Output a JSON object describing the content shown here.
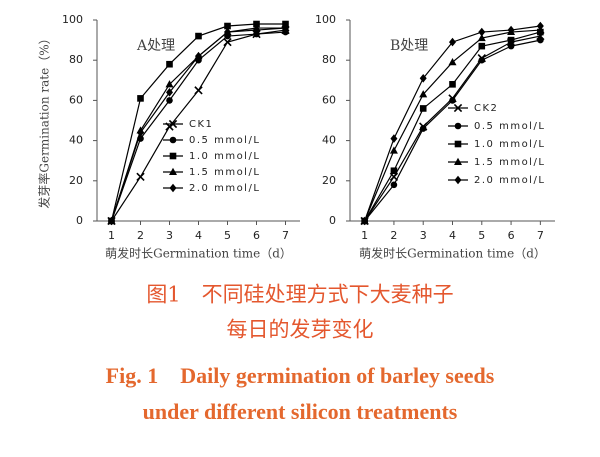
{
  "chart_data": [
    {
      "type": "line",
      "annotation": "A处理",
      "y_label": "发芽率Germination rate（%）",
      "x_label": "萌发时长Germination time（d）",
      "x": [
        1,
        2,
        3,
        4,
        5,
        6,
        7
      ],
      "xlim": [
        0.5,
        7.5
      ],
      "xticks": [
        1,
        2,
        3,
        4,
        5,
        6,
        7
      ],
      "ylim": [
        0,
        100
      ],
      "yticks": [
        0,
        20,
        40,
        60,
        80,
        100
      ],
      "legend": "center",
      "series": [
        {
          "name": "CK1",
          "color": "#000000",
          "marker": "x",
          "values": [
            0,
            22,
            47,
            65,
            89,
            93,
            95
          ]
        },
        {
          "name": "0.5 mmol/L",
          "color": "#000000",
          "marker": "circle",
          "values": [
            0,
            41,
            60,
            80,
            92,
            93,
            94
          ]
        },
        {
          "name": "1.0 mmol/L",
          "color": "#000000",
          "marker": "square",
          "values": [
            0,
            61,
            78,
            92,
            97,
            98,
            98
          ]
        },
        {
          "name": "1.5 mmol/L",
          "color": "#000000",
          "marker": "triangle",
          "values": [
            0,
            45,
            68,
            82,
            94,
            96,
            96
          ]
        },
        {
          "name": "2.0 mmol/L",
          "color": "#000000",
          "marker": "diamond",
          "values": [
            0,
            44,
            64,
            82,
            94,
            95,
            96
          ]
        }
      ]
    },
    {
      "type": "line",
      "annotation": "B处理",
      "x_label": "萌发时长Germination time（d）",
      "x": [
        1,
        2,
        3,
        4,
        5,
        6,
        7
      ],
      "xlim": [
        0.5,
        7.5
      ],
      "xticks": [
        1,
        2,
        3,
        4,
        5,
        6,
        7
      ],
      "ylim": [
        0,
        100
      ],
      "yticks": [
        0,
        20,
        40,
        60,
        80,
        100
      ],
      "legend": "lower-right",
      "series": [
        {
          "name": "CK2",
          "color": "#000000",
          "marker": "x",
          "values": [
            0,
            22,
            47,
            61,
            81,
            89,
            92
          ]
        },
        {
          "name": "0.5 mmol/L",
          "color": "#000000",
          "marker": "circle",
          "values": [
            0,
            18,
            46,
            60,
            80,
            87,
            90
          ]
        },
        {
          "name": "1.0 mmol/L",
          "color": "#000000",
          "marker": "square",
          "values": [
            0,
            25,
            56,
            68,
            87,
            90,
            94
          ]
        },
        {
          "name": "1.5 mmol/L",
          "color": "#000000",
          "marker": "triangle",
          "values": [
            0,
            35,
            63,
            79,
            91,
            94,
            95
          ]
        },
        {
          "name": "2.0 mmol/L",
          "color": "#000000",
          "marker": "diamond",
          "values": [
            0,
            41,
            71,
            89,
            94,
            95,
            97
          ]
        }
      ]
    }
  ],
  "caption": {
    "zh": [
      "图1　不同硅处理方式下大麦种子",
      "每日的发芽变化"
    ],
    "en": [
      "Fig. 1　Daily germination of barley seeds",
      "under different silicon treatments"
    ]
  }
}
